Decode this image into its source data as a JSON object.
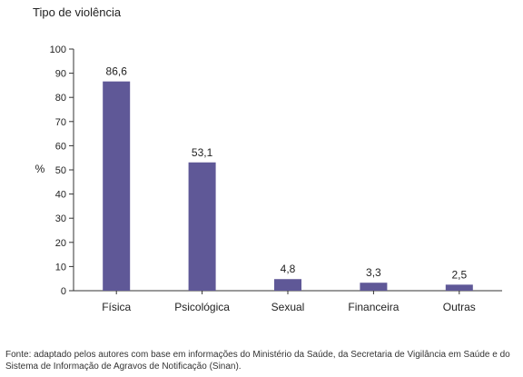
{
  "chart_data": {
    "type": "bar",
    "title": "Tipo de violência",
    "ylabel": "%",
    "xlabel": "",
    "categories": [
      "Física",
      "Psicológica",
      "Sexual",
      "Financeira",
      "Outras"
    ],
    "values": [
      86.6,
      53.1,
      4.8,
      3.3,
      2.5
    ],
    "value_labels": [
      "86,6",
      "53,1",
      "4,8",
      "3,3",
      "2,5"
    ],
    "ylim": [
      0,
      100
    ],
    "yticks": [
      0,
      10,
      20,
      30,
      40,
      50,
      60,
      70,
      80,
      90,
      100
    ],
    "grid": false,
    "bar_color": "#5f5897",
    "legend": "none"
  },
  "source_note": "Fonte: adaptado pelos autores com base em informações do Ministério da Saúde, da Secretaria de Vigilância em Saúde e do Sistema de Informação de Agravos de Notificação (Sinan)."
}
